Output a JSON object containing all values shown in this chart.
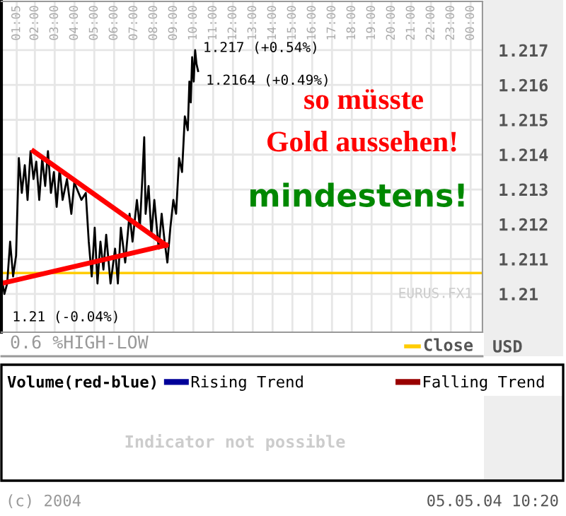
{
  "chart_data": [
    {
      "type": "line",
      "x": [
        0.31,
        0.46,
        0.6,
        0.75,
        0.9,
        1.05,
        1.19,
        1.34,
        1.49,
        1.63,
        1.78,
        1.93,
        2.07,
        2.22,
        2.37,
        2.52,
        2.66,
        2.81,
        2.96,
        3.1,
        3.25,
        3.4,
        3.62,
        3.84,
        3.99,
        4.35,
        4.57,
        4.72,
        4.87,
        5.02,
        5.16,
        5.31,
        5.46,
        5.6,
        5.82,
        6.05,
        6.19,
        6.34,
        6.56,
        6.78,
        6.93,
        7.15,
        7.3,
        7.44,
        7.52,
        7.59,
        7.74,
        7.88,
        8.03,
        8.25,
        8.4,
        8.55,
        8.69,
        8.84,
        8.99,
        9.13,
        9.28,
        9.43,
        9.57,
        9.72,
        9.8,
        9.87,
        9.94,
        10.02,
        10.09,
        10.16,
        10.24
      ],
      "series": [
        {
          "color": "#000000",
          "values": [
            1.2105,
            1.21,
            1.2103,
            1.2115,
            1.2105,
            1.2111,
            1.2139,
            1.2129,
            1.2137,
            1.2127,
            1.2141,
            1.2133,
            1.2138,
            1.2127,
            1.2139,
            1.2131,
            1.2141,
            1.2129,
            1.2135,
            1.2125,
            1.2136,
            1.2127,
            1.2133,
            1.2123,
            1.2132,
            1.2127,
            1.2129,
            1.2115,
            1.2105,
            1.2119,
            1.2103,
            1.2115,
            1.2107,
            1.2117,
            1.2103,
            1.2113,
            1.2103,
            1.2119,
            1.2109,
            1.2123,
            1.2115,
            1.2127,
            1.2119,
            1.2135,
            1.2145,
            1.2123,
            1.2131,
            1.2117,
            1.2127,
            1.2113,
            1.2123,
            1.2115,
            1.2109,
            1.2119,
            1.2127,
            1.2123,
            1.2139,
            1.2135,
            1.2151,
            1.2147,
            1.2161,
            1.2155,
            1.2168,
            1.2161,
            1.217,
            1.2166,
            1.2164
          ]
        },
        {
          "type": "line",
          "color": "#ff0000",
          "x": [
            1.93,
            8.62
          ],
          "values": [
            1.2141,
            1.2114
          ]
        },
        {
          "type": "line",
          "color": "#ff0000",
          "x": [
            0.31,
            8.62
          ],
          "values": [
            1.2103,
            1.2114
          ]
        }
      ],
      "xlim": [
        0.31,
        24.6
      ],
      "ylim": [
        1.2089,
        1.2184
      ],
      "xticks": [
        {
          "value": 1.0833,
          "label": "01:05"
        },
        {
          "value": 2,
          "label": "02:00"
        },
        {
          "value": 3,
          "label": "03:00"
        },
        {
          "value": 4,
          "label": "04:00"
        },
        {
          "value": 5,
          "label": "05:00"
        },
        {
          "value": 6,
          "label": "06:00"
        },
        {
          "value": 7,
          "label": "07:00"
        },
        {
          "value": 8,
          "label": "08:00"
        },
        {
          "value": 9,
          "label": "09:00"
        },
        {
          "value": 10,
          "label": "10:00"
        },
        {
          "value": 11,
          "label": "11:00"
        },
        {
          "value": 12,
          "label": "12:00"
        },
        {
          "value": 13,
          "label": "13:00"
        },
        {
          "value": 14,
          "label": "14:00"
        },
        {
          "value": 15,
          "label": "15:00"
        },
        {
          "value": 16,
          "label": "16:00"
        },
        {
          "value": 17,
          "label": "17:00"
        },
        {
          "value": 18,
          "label": "18:00"
        },
        {
          "value": 19,
          "label": "19:00"
        },
        {
          "value": 20,
          "label": "20:00"
        },
        {
          "value": 21,
          "label": "21:00"
        },
        {
          "value": 22,
          "label": "22:00"
        },
        {
          "value": 23,
          "label": "23:00"
        },
        {
          "value": 24,
          "label": "00:00"
        }
      ],
      "yticks": [
        1.21,
        1.211,
        1.212,
        1.213,
        1.214,
        1.215,
        1.216,
        1.217
      ],
      "grid": true,
      "ref_lines": [
        {
          "axis": "y",
          "value": 1.2106,
          "label": "Close",
          "color": "#ffcc00"
        }
      ],
      "annotations": [
        {
          "text": "1.217 (+0.54%)",
          "x": 10.09,
          "y": 1.217
        },
        {
          "text": "1.2164 (+0.49%)",
          "x": 10.24,
          "y": 1.2164
        },
        {
          "text": "1.21 (-0.04%)",
          "x": 0.46,
          "y": 1.21
        },
        "so müsste",
        "Gold aussehen!",
        "mindestens!",
        "EURUS.FX1",
        "0.6 %HIGH-LOW",
        "USD"
      ]
    },
    {
      "type": "other",
      "title": "Volume(red-blue)",
      "legend": "top",
      "series": [
        {
          "name": "Rising Trend",
          "color": "#000099"
        },
        {
          "name": "Falling Trend",
          "color": "#990000"
        }
      ],
      "annotations": [
        "Indicator not possible",
        "(c) 2004",
        "05.05.04 10:20"
      ]
    }
  ]
}
